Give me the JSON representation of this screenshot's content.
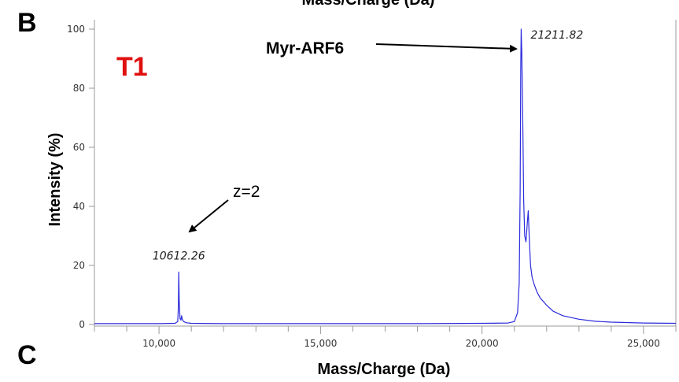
{
  "panels": {
    "top_letter": "B",
    "bottom_letter": "C"
  },
  "top_cut_text": "Mass/Charge (Da)",
  "chart_data": {
    "type": "line",
    "title": "",
    "xlabel": "Mass/Charge (Da)",
    "ylabel": "Intensity (%)",
    "xlim": [
      8000,
      26000
    ],
    "ylim": [
      0,
      100
    ],
    "x_ticks": [
      {
        "value": 10000,
        "label": "10,000"
      },
      {
        "value": 15000,
        "label": "15,000"
      },
      {
        "value": 20000,
        "label": "20,000"
      },
      {
        "value": 25000,
        "label": "25,000"
      }
    ],
    "y_ticks": [
      {
        "value": 0,
        "label": "0"
      },
      {
        "value": 20,
        "label": "20"
      },
      {
        "value": 40,
        "label": "40"
      },
      {
        "value": 60,
        "label": "60"
      },
      {
        "value": 80,
        "label": "80"
      },
      {
        "value": 100,
        "label": "100"
      }
    ],
    "series": [
      {
        "color": "#2b2bdd",
        "x": [
          8000,
          9000,
          10000,
          10500,
          10580,
          10600,
          10612,
          10625,
          10650,
          10680,
          10700,
          10720,
          10760,
          10850,
          11000,
          12000,
          14000,
          16000,
          18000,
          20000,
          20800,
          21000,
          21100,
          21150,
          21180,
          21200,
          21212,
          21230,
          21260,
          21290,
          21320,
          21360,
          21400,
          21430,
          21460,
          21500,
          21550,
          21600,
          21700,
          21800,
          22000,
          22200,
          22500,
          23000,
          23500,
          24000,
          25000,
          26000
        ],
        "y": [
          0.3,
          0.3,
          0.3,
          0.4,
          1,
          6,
          17.8,
          8,
          2,
          1.5,
          3,
          1.8,
          1,
          0.6,
          0.4,
          0.3,
          0.3,
          0.3,
          0.3,
          0.4,
          0.5,
          1,
          4,
          14,
          45,
          88,
          100,
          92,
          70,
          42,
          30,
          28,
          34,
          38.5,
          30,
          20,
          16,
          14,
          11,
          9,
          6.5,
          4.5,
          3,
          1.8,
          1.1,
          0.8,
          0.5,
          0.4
        ]
      }
    ],
    "peak_labels": [
      {
        "x": 10612,
        "y": 17.8,
        "label": "10612.26"
      },
      {
        "x": 21212,
        "y": 100,
        "label": "21211.82"
      }
    ],
    "annotations": {
      "sample": "T1",
      "main_peak_name": "Myr-ARF6",
      "charge_note": "z=2"
    },
    "grid": false,
    "legend": "none"
  }
}
